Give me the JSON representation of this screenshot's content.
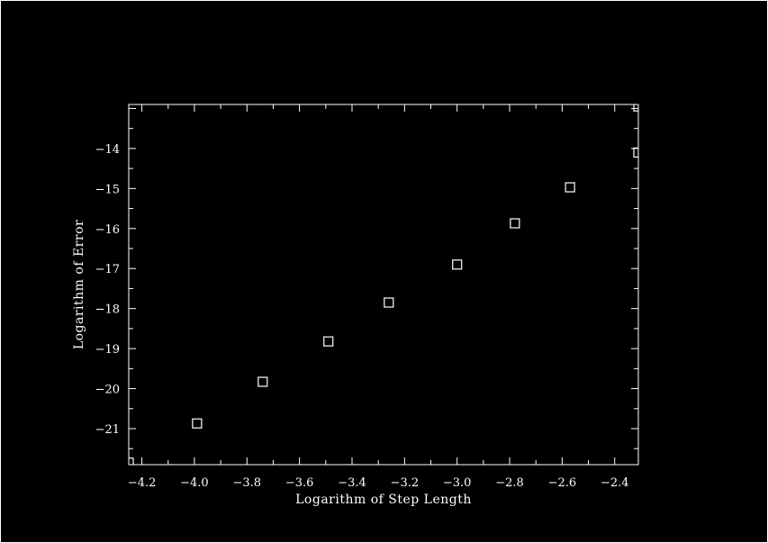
{
  "colors": {
    "background": "#000000",
    "foreground": "#ffffff"
  },
  "chart_data": {
    "type": "scatter",
    "marker": "hollow-square",
    "xlabel": "Logarithm of Step Length",
    "ylabel": "Logarithm of Error",
    "xlim": [
      -4.25,
      -2.31
    ],
    "ylim": [
      -21.9,
      -12.9
    ],
    "xticks": [
      -4.2,
      -4.0,
      -3.8,
      -3.6,
      -3.4,
      -3.2,
      -3.0,
      -2.8,
      -2.6,
      -2.4
    ],
    "xtick_labels": [
      "−4.2",
      "−4.0",
      "−3.8",
      "−3.6",
      "−3.4",
      "−3.2",
      "−3.0",
      "−2.8",
      "−2.6",
      "−2.4"
    ],
    "yticks": [
      -21,
      -20,
      -19,
      -18,
      -17,
      -16,
      -15,
      -14
    ],
    "ytick_labels": [
      "−21",
      "−20",
      "−19",
      "−18",
      "−17",
      "−16",
      "−15",
      "−14"
    ],
    "series": [
      {
        "x": [
          -4.25,
          -3.99,
          -3.74,
          -3.49,
          -3.26,
          -3.0,
          -2.78,
          -2.57,
          -2.31,
          -2.31
        ],
        "y": [
          -21.85,
          -20.87,
          -19.83,
          -18.82,
          -17.85,
          -16.9,
          -15.87,
          -14.97,
          -14.1,
          -12.95
        ]
      }
    ],
    "grid": false,
    "legend": "none"
  }
}
